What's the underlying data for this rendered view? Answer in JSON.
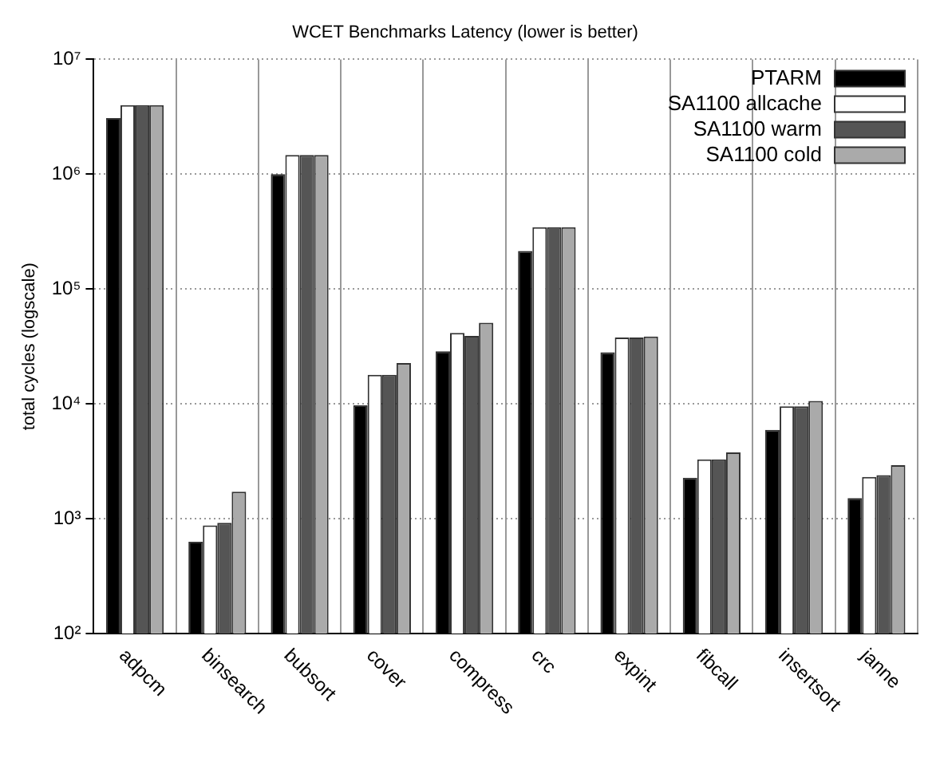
{
  "chart_data": {
    "type": "bar",
    "title": "WCET Benchmarks Latency (lower is better)",
    "ylabel": "total cycles (logscale)",
    "categories": [
      "adpcm",
      "binsearch",
      "bubsort",
      "cover",
      "compress",
      "crc",
      "expint",
      "fibcall",
      "insertsort",
      "janne"
    ],
    "series": [
      {
        "name": "PTARM",
        "color": "#000000",
        "values": [
          3080000,
          630,
          1000000,
          9700,
          28700,
          215000,
          28100,
          2270,
          5930,
          1510
        ]
      },
      {
        "name": "SA1100 allcache",
        "color": "#ffffff",
        "values": [
          4000000,
          875,
          1470000,
          17900,
          41500,
          345000,
          37800,
          3280,
          9500,
          2310
        ]
      },
      {
        "name": "SA1100 warm",
        "color": "#555555",
        "values": [
          4000000,
          920,
          1470000,
          17900,
          39000,
          345000,
          37800,
          3280,
          9500,
          2390
        ]
      },
      {
        "name": "SA1100 cold",
        "color": "#aaaaaa",
        "values": [
          4000000,
          1720,
          1470000,
          22700,
          50900,
          345000,
          38600,
          3780,
          10600,
          2930
        ]
      }
    ],
    "log": "y",
    "ylim": [
      100,
      10000000
    ],
    "yticks": [
      {
        "value": 100,
        "label": "10²"
      },
      {
        "value": 1000,
        "label": "10³"
      },
      {
        "value": 10000,
        "label": "10⁴"
      },
      {
        "value": 100000,
        "label": "10⁵"
      },
      {
        "value": 1000000,
        "label": "10⁶"
      },
      {
        "value": 10000000,
        "label": "10⁷"
      }
    ],
    "grid": true,
    "legend": "top right"
  }
}
